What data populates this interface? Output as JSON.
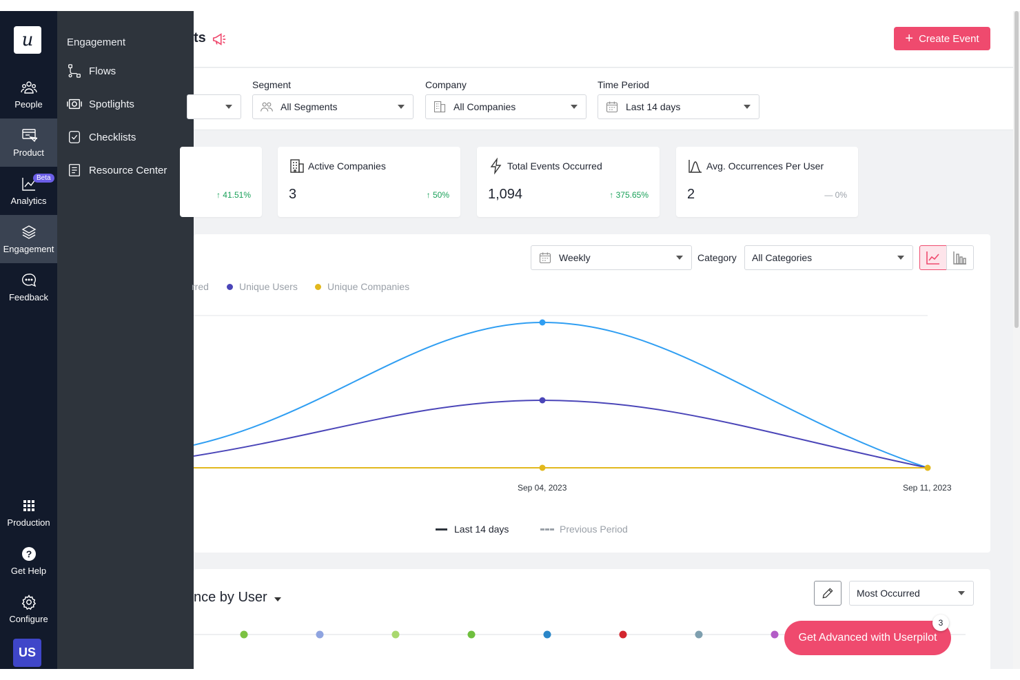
{
  "rail": {
    "logo": "u",
    "items": [
      {
        "label": "People",
        "icon": "people-icon"
      },
      {
        "label": "Product",
        "icon": "product-icon"
      },
      {
        "label": "Analytics",
        "icon": "analytics-icon",
        "badge": "Beta"
      },
      {
        "label": "Engagement",
        "icon": "layers-icon"
      },
      {
        "label": "Feedback",
        "icon": "chat-bubble-icon"
      }
    ],
    "bottom_items": [
      {
        "label": "Production",
        "icon": "grid-icon"
      },
      {
        "label": "Get Help",
        "icon": "help-icon"
      },
      {
        "label": "Configure",
        "icon": "gear-icon"
      }
    ],
    "avatar": "US"
  },
  "flyout": {
    "title": "Engagement",
    "items": [
      {
        "label": "Flows",
        "icon": "flows-icon"
      },
      {
        "label": "Spotlights",
        "icon": "spotlight-icon"
      },
      {
        "label": "Checklists",
        "icon": "checklist-icon"
      },
      {
        "label": "Resource Center",
        "icon": "resource-center-icon"
      }
    ]
  },
  "header": {
    "title_fragment": "ts",
    "create_button": "Create Event",
    "accent": "#ef4a6e"
  },
  "filters": {
    "segment": {
      "label": "Segment",
      "value": "All Segments"
    },
    "company": {
      "label": "Company",
      "value": "All Companies"
    },
    "time_period": {
      "label": "Time Period",
      "value": "Last 14 days"
    }
  },
  "stats": [
    {
      "title": "",
      "value": "",
      "delta": "41.51%",
      "trend": "up"
    },
    {
      "title": "Active Companies",
      "value": "3",
      "delta": "50%",
      "trend": "up"
    },
    {
      "title": "Total Events Occurred",
      "value": "1,094",
      "delta": "375.65%",
      "trend": "up"
    },
    {
      "title": "Avg. Occurrences Per User",
      "value": "2",
      "delta": "0%",
      "trend": "flat"
    }
  ],
  "chart_controls": {
    "interval": "Weekly",
    "category_label": "Category",
    "category_value": "All Categories"
  },
  "chart_data": {
    "type": "line",
    "x": [
      "Sep 04, 2023",
      "Sep 11, 2023"
    ],
    "series": [
      {
        "name": "Total Events Occurred",
        "color": "#2f9ef2",
        "values": [
          null,
          null
        ]
      },
      {
        "name": "Unique Users",
        "color": "#4a45b8",
        "values": [
          null,
          null
        ]
      },
      {
        "name": "Unique Companies",
        "color": "#e2b81d",
        "values": [
          null,
          null
        ]
      }
    ],
    "legend_visible": {
      "fragment": "rred",
      "users": "Unique Users",
      "companies": "Unique Companies"
    },
    "period_legend": {
      "current": "Last 14 days",
      "previous": "Previous Period"
    }
  },
  "bottom": {
    "title_fragment": "nce by User",
    "sort": "Most Occurred",
    "dot_colors": [
      "#7cc242",
      "#8fa4e0",
      "#a9d86e",
      "#6fbf3e",
      "#2a86c8",
      "#d3262e",
      "#7e9faf",
      "#b35cc6"
    ],
    "promo": "Get Advanced with Userpilot",
    "promo_badge": "3"
  }
}
